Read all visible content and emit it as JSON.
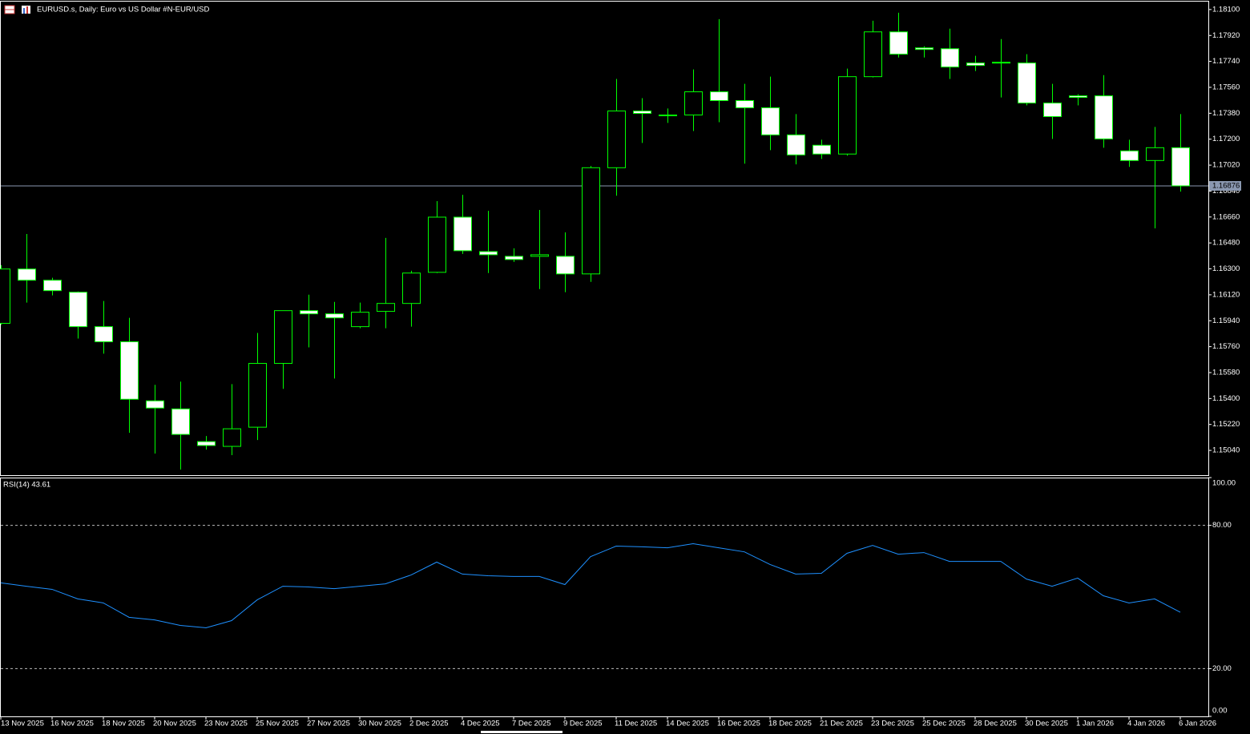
{
  "chart_data": [
    {
      "type": "candlestick",
      "title": "EURUSD.s, Daily:  Euro vs US Dollar #N-EUR/USD",
      "wick_color": "#00ff00",
      "bull_color": "#000000",
      "bear_color": "#ffffff",
      "open": [
        1.15922,
        1.16299,
        1.16221,
        1.16138,
        1.15899,
        1.15794,
        1.15384,
        1.15328,
        1.15101,
        1.15068,
        1.15201,
        1.15644,
        1.1601,
        1.15988,
        1.15899,
        1.16005,
        1.1606,
        1.16276,
        1.16659,
        1.1642,
        1.16387,
        1.16387,
        1.16387,
        1.16265,
        1.17002,
        1.17396,
        1.17368,
        1.17368,
        1.17529,
        1.17468,
        1.17418,
        1.1723,
        1.17158,
        1.17097,
        1.17634,
        1.17945,
        1.17834,
        1.17828,
        1.17729,
        1.17734,
        1.17729,
        1.17451,
        1.17501,
        1.17501,
        1.17119,
        1.17052,
        1.17141
      ],
      "high": [
        1.16326,
        1.16542,
        1.16238,
        1.16143,
        1.16077,
        1.1596,
        1.15495,
        1.15517,
        1.1514,
        1.155,
        1.15855,
        1.1601,
        1.16121,
        1.16071,
        1.16066,
        1.16515,
        1.16287,
        1.1677,
        1.16814,
        1.16703,
        1.16443,
        1.16709,
        1.16553,
        1.17014,
        1.17618,
        1.17485,
        1.17413,
        1.17684,
        1.18033,
        1.17584,
        1.17634,
        1.17374,
        1.17196,
        1.1769,
        1.18022,
        1.18078,
        1.17845,
        1.17967,
        1.17779,
        1.17895,
        1.1779,
        1.17584,
        1.17512,
        1.17645,
        1.17196,
        1.17285,
        1.17374
      ],
      "low": [
        1.15911,
        1.16066,
        1.16116,
        1.15816,
        1.15711,
        1.15162,
        1.15018,
        1.14907,
        1.15046,
        1.15007,
        1.15112,
        1.15467,
        1.15755,
        1.15539,
        1.15888,
        1.15888,
        1.15899,
        1.16271,
        1.16404,
        1.16271,
        1.16348,
        1.1616,
        1.16138,
        1.1621,
        1.16808,
        1.17174,
        1.17313,
        1.17257,
        1.17318,
        1.1703,
        1.17124,
        1.17025,
        1.17063,
        1.17086,
        1.17629,
        1.17767,
        1.17767,
        1.17618,
        1.17673,
        1.1749,
        1.17435,
        1.17202,
        1.17435,
        1.17141,
        1.17008,
        1.16581,
        1.16836
      ],
      "close": [
        1.16299,
        1.16221,
        1.16149,
        1.15899,
        1.15794,
        1.15395,
        1.15334,
        1.15151,
        1.15074,
        1.1519,
        1.15644,
        1.1601,
        1.15988,
        1.1596,
        1.15999,
        1.1606,
        1.16271,
        1.16659,
        1.16426,
        1.16398,
        1.16365,
        1.16398,
        1.16265,
        1.17002,
        1.17396,
        1.17379,
        1.17365,
        1.17529,
        1.17468,
        1.17418,
        1.1723,
        1.17091,
        1.17097,
        1.17634,
        1.17945,
        1.1779,
        1.17823,
        1.17701,
        1.17712,
        1.17729,
        1.17451,
        1.17357,
        1.1749,
        1.17202,
        1.17052,
        1.17141,
        1.16876
      ],
      "ylim": [
        1.14868,
        1.18155
      ],
      "yticks": [
        {
          "value": 1.181,
          "label": "1.18100"
        },
        {
          "value": 1.1792,
          "label": "1.17920"
        },
        {
          "value": 1.1774,
          "label": "1.17740"
        },
        {
          "value": 1.1756,
          "label": "1.17560"
        },
        {
          "value": 1.1738,
          "label": "1.17380"
        },
        {
          "value": 1.172,
          "label": "1.17200"
        },
        {
          "value": 1.1702,
          "label": "1.17020"
        },
        {
          "value": 1.1684,
          "label": "1.16840"
        },
        {
          "value": 1.1666,
          "label": "1.16660"
        },
        {
          "value": 1.1648,
          "label": "1.16480"
        },
        {
          "value": 1.163,
          "label": "1.16300"
        },
        {
          "value": 1.1612,
          "label": "1.16120"
        },
        {
          "value": 1.1594,
          "label": "1.15940"
        },
        {
          "value": 1.1576,
          "label": "1.15760"
        },
        {
          "value": 1.1558,
          "label": "1.15580"
        },
        {
          "value": 1.154,
          "label": "1.15400"
        },
        {
          "value": 1.1522,
          "label": "1.15220"
        },
        {
          "value": 1.1504,
          "label": "1.15040"
        }
      ],
      "price_line": {
        "value": 1.16876,
        "label": "1.16876",
        "color": "#8a98b0"
      }
    },
    {
      "type": "line",
      "title": "RSI(14) 43.61",
      "color": "#1e90ff",
      "categories": [
        "13 Nov 2025",
        null,
        "16 Nov 2025",
        null,
        "18 Nov 2025",
        null,
        "20 Nov 2025",
        null,
        "23 Nov 2025",
        null,
        "25 Nov 2025",
        null,
        "27 Nov 2025",
        null,
        "30 Nov 2025",
        null,
        "2 Dec 2025",
        null,
        "4 Dec 2025",
        null,
        "7 Dec 2025",
        null,
        "9 Dec 2025",
        null,
        "11 Dec 2025",
        null,
        "14 Dec 2025",
        null,
        "16 Dec 2025",
        null,
        "18 Dec 2025",
        null,
        "21 Dec 2025",
        null,
        "23 Dec 2025",
        null,
        "25 Dec 2025",
        null,
        "28 Dec 2025",
        null,
        "30 Dec 2025",
        null,
        "1 Jan 2026",
        null,
        "4 Jan 2026",
        null,
        "6 Jan 2026"
      ],
      "values": [
        55.9,
        54.5,
        53.2,
        49.2,
        47.5,
        41.5,
        40.4,
        38.1,
        37.1,
        40.1,
        48.8,
        54.5,
        54.2,
        53.5,
        54.5,
        55.5,
        59.2,
        64.6,
        59.6,
        58.9,
        58.6,
        58.6,
        55.2,
        66.9,
        71.3,
        71.0,
        70.6,
        72.3,
        70.6,
        68.9,
        63.6,
        59.6,
        59.9,
        68.3,
        71.6,
        67.9,
        68.6,
        64.9,
        64.9,
        64.9,
        57.5,
        54.5,
        57.9,
        50.5,
        47.5,
        49.2,
        43.61
      ],
      "ylim": [
        0,
        100
      ],
      "yticks": [
        {
          "value": 100,
          "label": "100.00"
        },
        {
          "value": 80,
          "label": "80.00"
        },
        {
          "value": 20,
          "label": "20.00"
        },
        {
          "value": 0,
          "label": "0.00"
        }
      ],
      "levels": [
        80,
        20
      ]
    }
  ]
}
